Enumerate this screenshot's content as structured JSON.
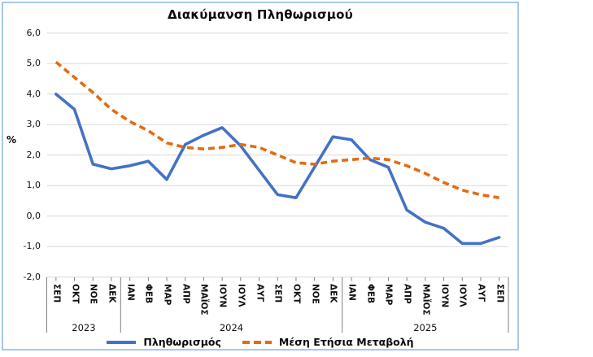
{
  "window": {
    "background": "#FFFFFF",
    "frame_border_color": "#A9C7E8"
  },
  "chart_data": {
    "type": "line",
    "title": "Διακύμανση Πληθωρισμού",
    "ylabel": "%",
    "ylim": [
      -2.0,
      6.0
    ],
    "grid": true,
    "legend_position": "bottom",
    "decimal_separator": ",",
    "y_ticks": [
      {
        "label": "6,0",
        "value": 6.0
      },
      {
        "label": "5,0",
        "value": 5.0
      },
      {
        "label": "4,0",
        "value": 4.0
      },
      {
        "label": "3,0",
        "value": 3.0
      },
      {
        "label": "2,0",
        "value": 2.0
      },
      {
        "label": "1,0",
        "value": 1.0
      },
      {
        "label": "0,0",
        "value": 0.0
      },
      {
        "label": "-1,0",
        "value": -1.0
      },
      {
        "label": "-2,0",
        "value": -2.0
      }
    ],
    "categories": [
      "ΣΕΠ",
      "ΟΚΤ",
      "ΝΟΕ",
      "ΔΕΚ",
      "ΙΑΝ",
      "ΦΕΒ",
      "ΜΑΡ",
      "ΑΠΡ",
      "ΜΑΪΟΣ",
      "ΙΟΥΝ",
      "ΙΟΥΛ",
      "ΑΥΓ",
      "ΣΕΠ",
      "ΟΚΤ",
      "ΝΟΕ",
      "ΔΕΚ",
      "ΙΑΝ",
      "ΦΕΒ",
      "ΜΑΡ",
      "ΑΠΡ",
      "ΜΑΪΟΣ",
      "ΙΟΥΝ",
      "ΙΟΥΛ",
      "ΑΥΓ",
      "ΣΕΠ"
    ],
    "year_groups": [
      {
        "label": "2023",
        "count": 4
      },
      {
        "label": "2024",
        "count": 12
      },
      {
        "label": "2025",
        "count": 9
      }
    ],
    "series": [
      {
        "name": "Πληθωρισμός",
        "style": "solid",
        "color": "#4472C4",
        "values": [
          4.0,
          3.5,
          1.7,
          1.55,
          1.65,
          1.8,
          1.2,
          2.35,
          2.65,
          2.9,
          2.3,
          1.5,
          0.7,
          0.6,
          1.6,
          2.6,
          2.5,
          1.85,
          1.6,
          0.2,
          -0.2,
          -0.4,
          -0.9,
          -0.9,
          -0.7
        ]
      },
      {
        "name": "Μέση Ετήσια Μεταβολή",
        "style": "dashed",
        "color": "#E36C10",
        "values": [
          5.05,
          4.55,
          4.05,
          3.5,
          3.1,
          2.8,
          2.4,
          2.25,
          2.2,
          2.25,
          2.35,
          2.25,
          2.0,
          1.75,
          1.7,
          1.8,
          1.85,
          1.9,
          1.85,
          1.65,
          1.4,
          1.1,
          0.85,
          0.7,
          0.6
        ]
      }
    ],
    "gridline_color": "#D9D9D9",
    "axis_line_color": "#7F7F7F"
  }
}
